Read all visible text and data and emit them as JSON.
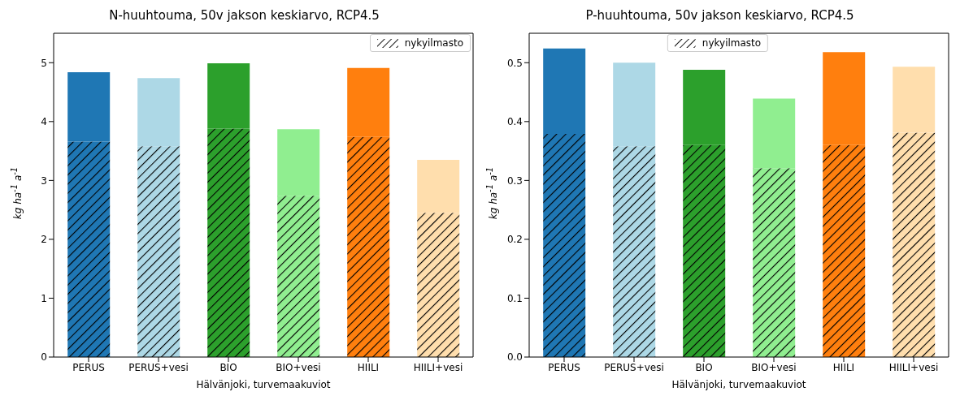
{
  "chart_data": [
    {
      "type": "bar",
      "title": "N-huuhtouma, 50v jakson keskiarvo, RCP4.5",
      "xlabel": "Hälvänjoki, turvemaakuviot",
      "ylabel": "kg ha$^{-1}$ a$^{-1}$",
      "categories": [
        "PERUS",
        "PERUS+vesi",
        "BIO",
        "BIO+vesi",
        "HIILI",
        "HIILI+vesi"
      ],
      "stacked": true,
      "series": [
        {
          "name": "nykyilmasto",
          "color": "#000000",
          "colors": [
            "#1f77b4",
            "#add8e6",
            "#2ca02c",
            "#90ee90",
            "#ff7f0e",
            "#ffdead"
          ],
          "values": [
            3.66,
            3.58,
            3.88,
            2.74,
            3.74,
            2.45
          ]
        },
        {
          "colors": [
            "#1f77b4",
            "#add8e6",
            "#2ca02c",
            "#90ee90",
            "#ff7f0e",
            "#ffdead"
          ],
          "values": [
            1.18,
            1.16,
            1.11,
            1.13,
            1.17,
            0.9
          ]
        }
      ],
      "ylim": [
        0,
        5.5
      ],
      "yticks": [
        0,
        1,
        2,
        3,
        4,
        5
      ],
      "grid": false,
      "legend": "top right"
    },
    {
      "type": "bar",
      "title": "P-huuhtouma, 50v jakson keskiarvo, RCP4.5",
      "xlabel": "Hälvänjoki, turvemaakuviot",
      "ylabel": "kg ha$^{-1}$ a$^{-1}$",
      "categories": [
        "PERUS",
        "PERUS+vesi",
        "BIO",
        "BIO+vesi",
        "HIILI",
        "HIILI+vesi"
      ],
      "stacked": true,
      "series": [
        {
          "name": "nykyilmasto",
          "color": "#000000",
          "colors": [
            "#1f77b4",
            "#add8e6",
            "#2ca02c",
            "#90ee90",
            "#ff7f0e",
            "#ffdead"
          ],
          "values": [
            0.379,
            0.358,
            0.36,
            0.321,
            0.36,
            0.381
          ]
        },
        {
          "colors": [
            "#1f77b4",
            "#add8e6",
            "#2ca02c",
            "#90ee90",
            "#ff7f0e",
            "#ffdead"
          ],
          "values": [
            0.145,
            0.142,
            0.128,
            0.118,
            0.158,
            0.112
          ]
        }
      ],
      "ylim": [
        0,
        0.55
      ],
      "yticks": [
        {
          "value": 0,
          "label": "0.0"
        },
        0.1,
        0.2,
        0.3,
        0.4,
        0.5
      ],
      "grid": false,
      "legend": "top"
    }
  ]
}
